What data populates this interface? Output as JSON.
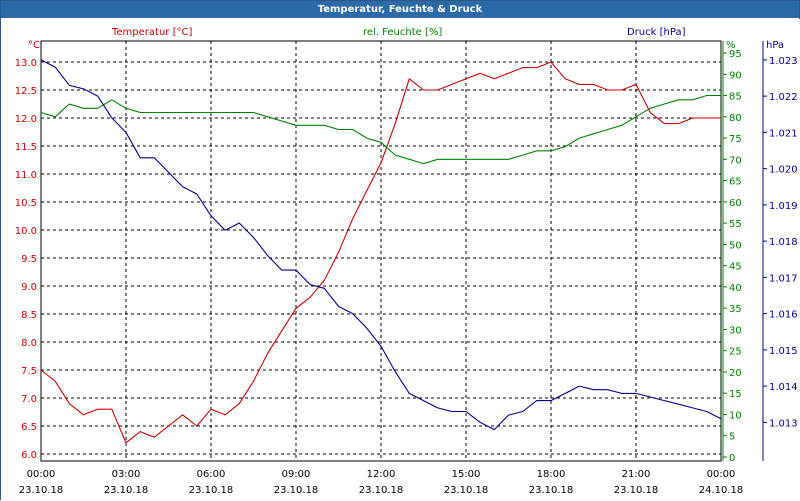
{
  "title": "Temperatur, Feuchte & Druck",
  "colors": {
    "temp": "#cc0000",
    "hum": "#008000",
    "press": "#00008b",
    "title_bg": "#2b6aa6"
  },
  "chart_data": {
    "type": "line",
    "title": "Temperatur, Feuchte & Druck",
    "grid": true,
    "x_ticks": [
      {
        "time": "00:00",
        "date": "23.10.18"
      },
      {
        "time": "03:00",
        "date": "23.10.18"
      },
      {
        "time": "06:00",
        "date": "23.10.18"
      },
      {
        "time": "09:00",
        "date": "23.10.18"
      },
      {
        "time": "12:00",
        "date": "23.10.18"
      },
      {
        "time": "15:00",
        "date": "23.10.18"
      },
      {
        "time": "18:00",
        "date": "23.10.18"
      },
      {
        "time": "21:00",
        "date": "23.10.18"
      },
      {
        "time": "00:00",
        "date": "24.10.18"
      }
    ],
    "x_hours": [
      0,
      0.5,
      1,
      1.5,
      2,
      2.5,
      3,
      3.5,
      4,
      4.5,
      5,
      5.5,
      6,
      6.5,
      7,
      7.5,
      8,
      8.5,
      9,
      9.5,
      10,
      10.5,
      11,
      11.5,
      12,
      12.5,
      13,
      13.5,
      14,
      14.5,
      15,
      15.5,
      16,
      16.5,
      17,
      17.5,
      18,
      18.5,
      19,
      19.5,
      20,
      20.5,
      21,
      21.5,
      22,
      22.5,
      23,
      23.5,
      24
    ],
    "axes": {
      "temp": {
        "unit_label": "°C",
        "range": [
          6.0,
          13.0
        ],
        "ticks": [
          "13.0",
          "12.5",
          "12.0",
          "11.5",
          "11.0",
          "10.5",
          "10.0",
          "9.5",
          "9.0",
          "8.5",
          "8.0",
          "7.5",
          "7.0",
          "6.5",
          "6.0"
        ]
      },
      "hum": {
        "unit_label": "%",
        "range": [
          0,
          95
        ],
        "ticks": [
          "95",
          "90",
          "85",
          "80",
          "75",
          "70",
          "65",
          "60",
          "55",
          "50",
          "45",
          "40",
          "35",
          "30",
          "25",
          "20",
          "15",
          "10",
          "5",
          "0"
        ]
      },
      "press": {
        "unit_label": "hPa",
        "range": [
          1.0121,
          1.0233
        ],
        "ticks": [
          "1.023",
          "1.022",
          "1.021",
          "1.020",
          "1.019",
          "1.018",
          "1.017",
          "1.016",
          "1.015",
          "1.014",
          "1.013"
        ]
      }
    },
    "series": [
      {
        "name": "Temperatur [°C]",
        "axis": "temp",
        "color": "#cc0000",
        "values": [
          7.5,
          7.3,
          6.9,
          6.7,
          6.8,
          6.8,
          6.2,
          6.4,
          6.3,
          6.5,
          6.7,
          6.5,
          6.8,
          6.7,
          6.9,
          7.3,
          7.8,
          8.2,
          8.6,
          8.8,
          9.1,
          9.6,
          10.2,
          10.7,
          11.2,
          11.9,
          12.7,
          12.5,
          12.5,
          12.6,
          12.7,
          12.8,
          12.7,
          12.8,
          12.9,
          12.9,
          13.0,
          12.7,
          12.6,
          12.6,
          12.5,
          12.5,
          12.6,
          12.1,
          11.9,
          11.9,
          12.0,
          12.0,
          12.0
        ]
      },
      {
        "name": "rel. Feuchte [%]",
        "axis": "hum",
        "color": "#008000",
        "values": [
          81,
          80,
          83,
          82,
          82,
          84,
          82,
          81,
          81,
          81,
          81,
          81,
          81,
          81,
          81,
          81,
          80,
          79,
          78,
          78,
          78,
          77,
          77,
          75,
          74,
          71,
          70,
          69,
          70,
          70,
          70,
          70,
          70,
          70,
          71,
          72,
          72,
          73,
          75,
          76,
          77,
          78,
          80,
          82,
          83,
          84,
          84,
          85,
          85
        ]
      },
      {
        "name": "Druck [hPa]",
        "axis": "press",
        "color": "#00008b",
        "values": [
          1.023,
          1.0228,
          1.0223,
          1.0222,
          1.022,
          1.0214,
          1.021,
          1.0203,
          1.0203,
          1.0199,
          1.0195,
          1.0193,
          1.0187,
          1.0183,
          1.0185,
          1.0181,
          1.0176,
          1.0172,
          1.0172,
          1.0168,
          1.0167,
          1.0162,
          1.016,
          1.0156,
          1.0151,
          1.0144,
          1.0138,
          1.0136,
          1.0134,
          1.0133,
          1.0133,
          1.013,
          1.0128,
          1.0132,
          1.0133,
          1.0136,
          1.0136,
          1.0138,
          1.014,
          1.0139,
          1.0139,
          1.0138,
          1.0138,
          1.0137,
          1.0136,
          1.0135,
          1.0134,
          1.0133,
          1.0131
        ]
      }
    ]
  }
}
